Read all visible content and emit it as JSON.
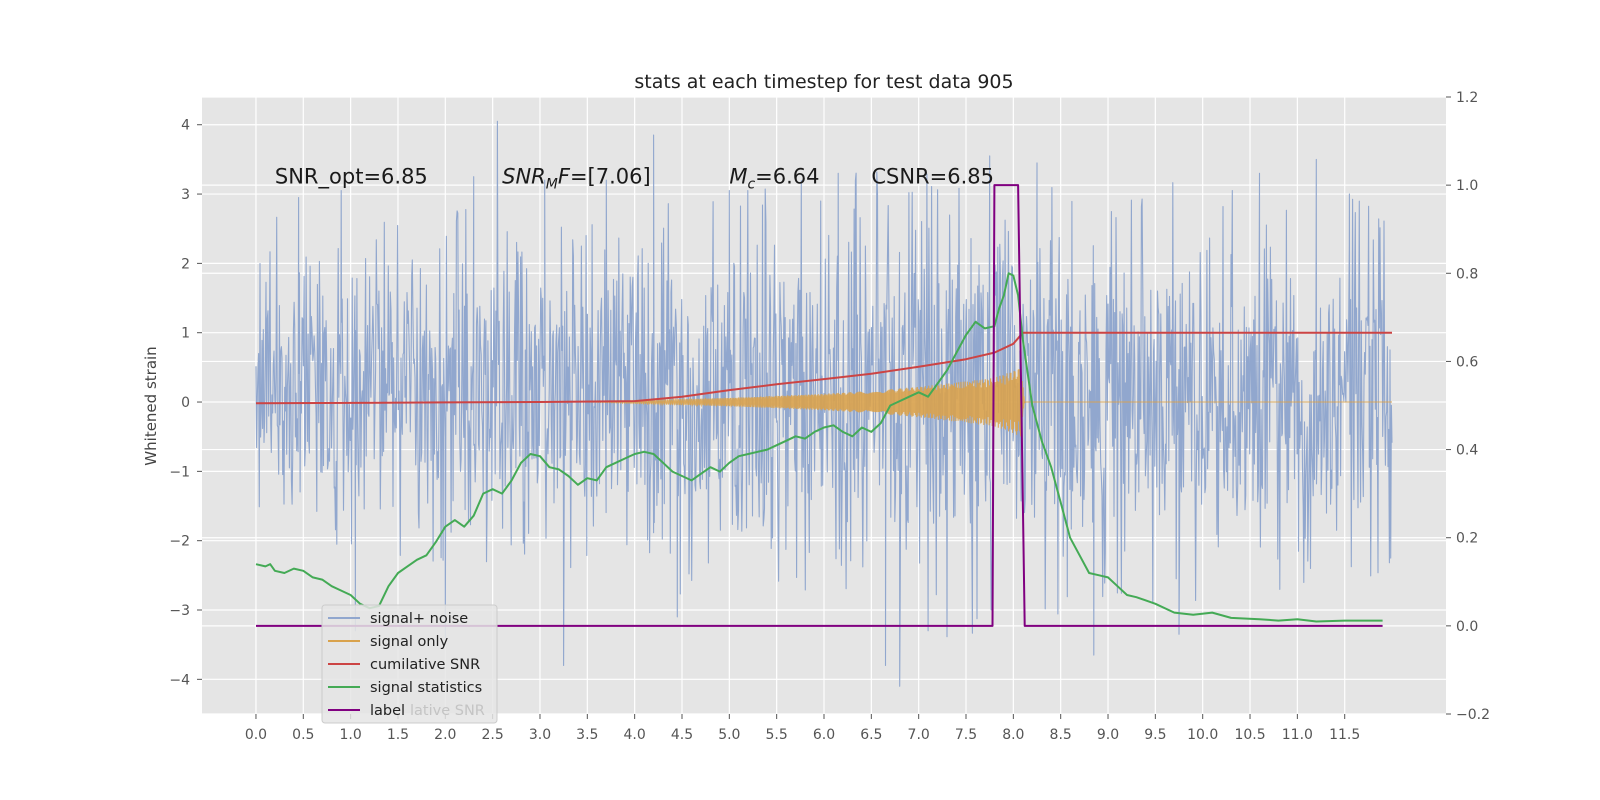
{
  "chart_data": {
    "type": "line",
    "title": "stats at each timestep for test data 905",
    "xlabel": "",
    "ylabel": "Whitened strain",
    "y2label": "",
    "xlim": [
      -0.57,
      12.57
    ],
    "ylim": [
      -4.5,
      4.4
    ],
    "y2lim": [
      -0.2,
      1.2
    ],
    "grid": true,
    "legend_position": "lower-left",
    "xticks": [
      "0.0",
      "0.5",
      "1.0",
      "1.5",
      "2.0",
      "2.5",
      "3.0",
      "3.5",
      "4.0",
      "4.5",
      "5.0",
      "5.5",
      "6.0",
      "6.5",
      "7.0",
      "7.5",
      "8.0",
      "8.5",
      "9.0",
      "9.5",
      "10.0",
      "10.5",
      "11.0",
      "11.5"
    ],
    "yticks": [
      "4",
      "3",
      "2",
      "1",
      "0",
      "−1",
      "−2",
      "−3",
      "−4"
    ],
    "y2ticks": [
      "1.2",
      "1.0",
      "0.8",
      "0.6",
      "0.4",
      "0.2",
      "0.0",
      "−0.2"
    ],
    "annotations": [
      {
        "id": "snr_opt",
        "label": "SNR_opt",
        "value": "=6.85",
        "x": 0.2,
        "y": 3.15
      },
      {
        "id": "snr_mf",
        "label": "SNR",
        "sub": "M",
        "label2": "F",
        "value": "=[7.06]",
        "x": 2.6,
        "y": 3.15
      },
      {
        "id": "mc",
        "label": "M",
        "sub": "c",
        "value": "=6.64",
        "x": 5.0,
        "y": 3.15
      },
      {
        "id": "csnr",
        "label": "CSNR",
        "value": "=6.85",
        "x": 6.5,
        "y": 3.15
      }
    ],
    "series": [
      {
        "name": "signal+ noise",
        "color": "#91a7ce",
        "axis": "left",
        "kind": "noise",
        "x_range": [
          0.0,
          12.0
        ],
        "envelope_upper": [
          [
            0.0,
            1.7
          ],
          [
            4.0,
            1.8
          ],
          [
            6.0,
            2.0
          ],
          [
            7.5,
            2.2
          ],
          [
            8.0,
            2.0
          ],
          [
            12.0,
            1.8
          ]
        ],
        "envelope_lower": [
          [
            0.0,
            -1.1
          ],
          [
            4.0,
            -1.5
          ],
          [
            6.0,
            -1.8
          ],
          [
            7.5,
            -2.0
          ],
          [
            8.0,
            -1.8
          ],
          [
            12.0,
            -1.5
          ]
        ],
        "spike_peaks": [
          {
            "x": 0.45,
            "y": 2.95
          },
          {
            "x": 0.9,
            "y": 3.05
          },
          {
            "x": 2.3,
            "y": 3.25
          },
          {
            "x": 2.55,
            "y": 4.05
          },
          {
            "x": 3.05,
            "y": 3.2
          },
          {
            "x": 3.7,
            "y": 3.2
          },
          {
            "x": 4.2,
            "y": 3.85
          },
          {
            "x": 5.0,
            "y": 3.05
          },
          {
            "x": 6.15,
            "y": 3.3
          },
          {
            "x": 7.75,
            "y": 3.55
          },
          {
            "x": 8.25,
            "y": 3.45
          },
          {
            "x": 10.6,
            "y": 3.3
          },
          {
            "x": 11.2,
            "y": 3.5
          },
          {
            "x": 11.55,
            "y": 3.0
          },
          {
            "x": 3.25,
            "y": -3.8
          },
          {
            "x": 4.45,
            "y": -3.1
          },
          {
            "x": 6.65,
            "y": -3.8
          },
          {
            "x": 6.8,
            "y": -4.1
          },
          {
            "x": 7.1,
            "y": -3.3
          },
          {
            "x": 8.85,
            "y": -3.65
          },
          {
            "x": 9.75,
            "y": -3.35
          },
          {
            "x": 1.05,
            "y": -3.3
          },
          {
            "x": 2.0,
            "y": -3.4
          }
        ]
      },
      {
        "name": "signal only",
        "color": "#d9a24c",
        "axis": "left",
        "kind": "chirp",
        "envelope": [
          [
            3.5,
            0.0
          ],
          [
            4.0,
            0.02
          ],
          [
            5.0,
            0.06
          ],
          [
            6.0,
            0.12
          ],
          [
            6.5,
            0.16
          ],
          [
            7.0,
            0.22
          ],
          [
            7.5,
            0.3
          ],
          [
            7.8,
            0.35
          ],
          [
            8.0,
            0.45
          ],
          [
            8.08,
            0.5
          ],
          [
            8.12,
            0.0
          ],
          [
            12.0,
            0.0
          ]
        ]
      },
      {
        "name": "cumilative SNR",
        "color": "#cc4444",
        "axis": "right",
        "points": [
          [
            0.0,
            0.505
          ],
          [
            1.0,
            0.506
          ],
          [
            2.0,
            0.507
          ],
          [
            3.0,
            0.508
          ],
          [
            4.0,
            0.51
          ],
          [
            4.5,
            0.52
          ],
          [
            5.0,
            0.535
          ],
          [
            5.5,
            0.548
          ],
          [
            6.0,
            0.56
          ],
          [
            6.5,
            0.572
          ],
          [
            7.0,
            0.588
          ],
          [
            7.5,
            0.605
          ],
          [
            7.8,
            0.62
          ],
          [
            8.0,
            0.64
          ],
          [
            8.1,
            0.665
          ],
          [
            12.0,
            0.665
          ]
        ]
      },
      {
        "name": "signal statistics",
        "color": "#44aa55",
        "axis": "right",
        "points": [
          [
            0.0,
            0.14
          ],
          [
            0.1,
            0.135
          ],
          [
            0.15,
            0.14
          ],
          [
            0.2,
            0.125
          ],
          [
            0.3,
            0.12
          ],
          [
            0.4,
            0.13
          ],
          [
            0.5,
            0.125
          ],
          [
            0.6,
            0.11
          ],
          [
            0.7,
            0.105
          ],
          [
            0.8,
            0.09
          ],
          [
            0.9,
            0.08
          ],
          [
            1.0,
            0.07
          ],
          [
            1.1,
            0.05
          ],
          [
            1.2,
            0.04
          ],
          [
            1.3,
            0.045
          ],
          [
            1.4,
            0.09
          ],
          [
            1.5,
            0.12
          ],
          [
            1.6,
            0.135
          ],
          [
            1.7,
            0.15
          ],
          [
            1.8,
            0.16
          ],
          [
            1.9,
            0.19
          ],
          [
            2.0,
            0.225
          ],
          [
            2.1,
            0.24
          ],
          [
            2.2,
            0.225
          ],
          [
            2.3,
            0.25
          ],
          [
            2.4,
            0.3
          ],
          [
            2.5,
            0.31
          ],
          [
            2.6,
            0.3
          ],
          [
            2.7,
            0.33
          ],
          [
            2.8,
            0.37
          ],
          [
            2.9,
            0.39
          ],
          [
            3.0,
            0.385
          ],
          [
            3.1,
            0.36
          ],
          [
            3.2,
            0.355
          ],
          [
            3.3,
            0.34
          ],
          [
            3.4,
            0.32
          ],
          [
            3.5,
            0.335
          ],
          [
            3.6,
            0.33
          ],
          [
            3.7,
            0.36
          ],
          [
            3.8,
            0.37
          ],
          [
            3.9,
            0.38
          ],
          [
            4.0,
            0.39
          ],
          [
            4.1,
            0.395
          ],
          [
            4.2,
            0.39
          ],
          [
            4.3,
            0.37
          ],
          [
            4.4,
            0.35
          ],
          [
            4.5,
            0.34
          ],
          [
            4.6,
            0.33
          ],
          [
            4.7,
            0.345
          ],
          [
            4.8,
            0.36
          ],
          [
            4.9,
            0.35
          ],
          [
            5.0,
            0.37
          ],
          [
            5.1,
            0.385
          ],
          [
            5.2,
            0.39
          ],
          [
            5.3,
            0.395
          ],
          [
            5.4,
            0.4
          ],
          [
            5.5,
            0.41
          ],
          [
            5.6,
            0.42
          ],
          [
            5.7,
            0.43
          ],
          [
            5.8,
            0.425
          ],
          [
            5.9,
            0.44
          ],
          [
            6.0,
            0.45
          ],
          [
            6.1,
            0.455
          ],
          [
            6.2,
            0.44
          ],
          [
            6.3,
            0.43
          ],
          [
            6.4,
            0.45
          ],
          [
            6.5,
            0.44
          ],
          [
            6.6,
            0.46
          ],
          [
            6.7,
            0.5
          ],
          [
            6.8,
            0.51
          ],
          [
            6.9,
            0.52
          ],
          [
            7.0,
            0.53
          ],
          [
            7.1,
            0.52
          ],
          [
            7.2,
            0.55
          ],
          [
            7.3,
            0.58
          ],
          [
            7.4,
            0.62
          ],
          [
            7.5,
            0.66
          ],
          [
            7.6,
            0.69
          ],
          [
            7.7,
            0.675
          ],
          [
            7.8,
            0.68
          ],
          [
            7.85,
            0.72
          ],
          [
            7.9,
            0.75
          ],
          [
            7.95,
            0.8
          ],
          [
            8.0,
            0.795
          ],
          [
            8.05,
            0.75
          ],
          [
            8.1,
            0.65
          ],
          [
            8.2,
            0.5
          ],
          [
            8.3,
            0.42
          ],
          [
            8.4,
            0.36
          ],
          [
            8.5,
            0.28
          ],
          [
            8.6,
            0.2
          ],
          [
            8.7,
            0.16
          ],
          [
            8.8,
            0.12
          ],
          [
            8.9,
            0.115
          ],
          [
            9.0,
            0.11
          ],
          [
            9.1,
            0.09
          ],
          [
            9.2,
            0.07
          ],
          [
            9.3,
            0.065
          ],
          [
            9.5,
            0.05
          ],
          [
            9.7,
            0.03
          ],
          [
            9.9,
            0.025
          ],
          [
            10.1,
            0.03
          ],
          [
            10.3,
            0.018
          ],
          [
            10.6,
            0.015
          ],
          [
            10.8,
            0.012
          ],
          [
            11.0,
            0.015
          ],
          [
            11.2,
            0.01
          ],
          [
            11.5,
            0.012
          ],
          [
            11.9,
            0.012
          ]
        ]
      },
      {
        "name": "label",
        "color": "#800080",
        "axis": "right",
        "points": [
          [
            0.0,
            0.0
          ],
          [
            7.78,
            0.0
          ],
          [
            7.8,
            1.0
          ],
          [
            8.05,
            1.0
          ],
          [
            8.12,
            0.0
          ],
          [
            11.9,
            0.0
          ]
        ]
      }
    ],
    "legend_entries": [
      "signal+ noise",
      "signal only",
      "cumilative SNR",
      "signal statistics",
      "label"
    ],
    "legend_ghost": "lative SNR"
  }
}
